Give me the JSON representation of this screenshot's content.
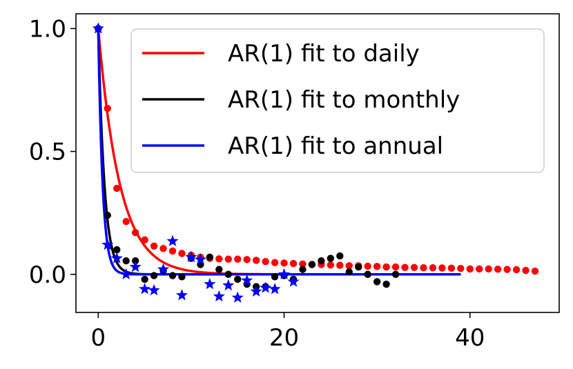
{
  "chart_data": {
    "type": "scatter",
    "title": "",
    "xlabel": "",
    "ylabel": "",
    "xlim": [
      -2.4,
      49.6
    ],
    "ylim": [
      -0.155,
      1.06
    ],
    "xticks": [
      0,
      20,
      40
    ],
    "yticks": [
      0.0,
      0.5,
      1.0
    ],
    "xtick_labels": [
      "0",
      "20",
      "40"
    ],
    "ytick_labels": [
      "0.0",
      "0.5",
      "1.0"
    ],
    "grid": false,
    "legend_position": "top-right",
    "fit_lines": [
      {
        "name": "AR(1) fit to daily",
        "color": "#ff0000",
        "phi": 0.65,
        "x_max": 39
      },
      {
        "name": "AR(1) fit to monthly",
        "color": "#000000",
        "phi": 0.22,
        "x_max": 39
      },
      {
        "name": "AR(1) fit to annual",
        "color": "#0000ff",
        "phi": 0.12,
        "x_max": 39
      }
    ],
    "points": [
      {
        "group": "daily",
        "color": "#ff0000",
        "marker": "dot",
        "x": [
          0,
          1,
          2,
          3,
          4,
          5,
          6,
          7,
          8,
          9,
          10,
          11,
          12,
          13,
          14,
          15,
          16,
          17,
          18,
          19,
          20,
          21,
          22,
          23,
          24,
          25,
          26,
          27,
          28,
          29,
          30,
          31,
          32,
          33,
          34,
          35,
          36,
          37,
          38,
          39,
          40,
          41,
          42,
          43,
          44,
          45,
          46,
          47
        ],
        "y": [
          1.0,
          0.675,
          0.35,
          0.215,
          0.17,
          0.14,
          0.115,
          0.105,
          0.095,
          0.085,
          0.078,
          0.07,
          0.065,
          0.063,
          0.062,
          0.062,
          0.06,
          0.057,
          0.052,
          0.048,
          0.046,
          0.044,
          0.042,
          0.04,
          0.04,
          0.038,
          0.037,
          0.035,
          0.035,
          0.033,
          0.032,
          0.03,
          0.03,
          0.028,
          0.028,
          0.027,
          0.027,
          0.026,
          0.025,
          0.024,
          0.022,
          0.022,
          0.022,
          0.021,
          0.02,
          0.019,
          0.016,
          0.013
        ]
      },
      {
        "group": "monthly",
        "color": "#000000",
        "marker": "dot",
        "x": [
          0,
          1,
          2,
          3,
          4,
          5,
          6,
          7,
          8,
          9,
          10,
          11,
          12,
          13,
          14,
          15,
          16,
          17,
          18,
          19,
          20,
          21,
          22,
          23,
          24,
          25,
          26,
          27,
          28,
          29,
          30,
          31,
          32
        ],
        "y": [
          1.0,
          0.24,
          0.1,
          0.055,
          0.055,
          -0.02,
          -0.005,
          0.015,
          -0.005,
          -0.01,
          0.065,
          0.04,
          0.07,
          0.02,
          0.0,
          -0.02,
          -0.04,
          -0.05,
          -0.05,
          -0.01,
          -0.005,
          -0.02,
          0.02,
          0.04,
          0.055,
          0.065,
          0.075,
          0.01,
          0.03,
          0.0,
          -0.03,
          -0.04,
          0.0
        ]
      },
      {
        "group": "annual",
        "color": "#0000ff",
        "marker": "star",
        "x": [
          0,
          1,
          2,
          3,
          4,
          5,
          6,
          7,
          8,
          9,
          10,
          11,
          12,
          13,
          14,
          15,
          16,
          17,
          18,
          19,
          20,
          21
        ],
        "y": [
          1.0,
          0.12,
          0.065,
          0.0,
          0.03,
          -0.06,
          -0.065,
          0.02,
          0.135,
          -0.085,
          0.07,
          0.06,
          -0.04,
          -0.09,
          -0.045,
          -0.095,
          -0.025,
          -0.07,
          -0.055,
          -0.06,
          0.0,
          -0.03
        ]
      }
    ]
  }
}
